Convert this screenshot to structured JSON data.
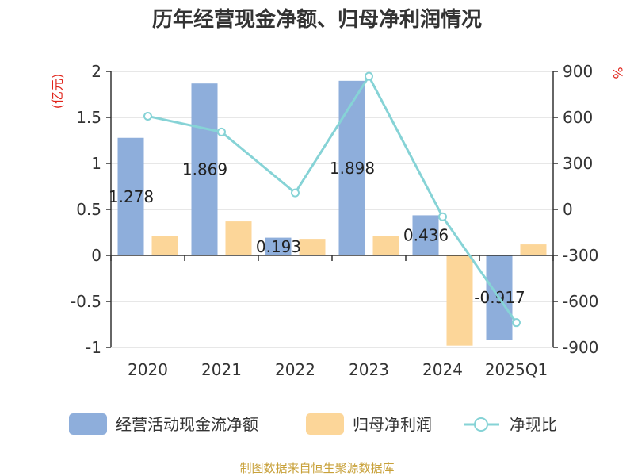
{
  "chart_data": {
    "type": "bar",
    "title": "历年经营现金净额、归母净利润情况",
    "categories": [
      "2020",
      "2021",
      "2022",
      "2023",
      "2024",
      "2025Q1"
    ],
    "y_left": {
      "unit_label": "(亿元)",
      "ylim": [
        -1,
        2
      ],
      "ticks": [
        "2",
        "1.5",
        "1",
        "0.5",
        "0",
        "-0.5",
        "-1"
      ]
    },
    "y_right": {
      "unit_label": "%",
      "ylim": [
        -900,
        900
      ],
      "ticks": [
        "900",
        "600",
        "300",
        "0",
        "-300",
        "-600",
        "-900"
      ]
    },
    "series": [
      {
        "name": "经营活动现金流净额",
        "type": "bar",
        "axis": "left",
        "color": "#8eaedb",
        "values": [
          1.278,
          1.869,
          0.193,
          1.898,
          0.436,
          -0.917
        ],
        "labels": [
          "1.278",
          "1.869",
          "0.193",
          "1.898",
          "0.436",
          "-0.917"
        ]
      },
      {
        "name": "归母净利润",
        "type": "bar",
        "axis": "left",
        "color": "#fcd699",
        "values": [
          0.21,
          0.37,
          0.18,
          0.21,
          -0.98,
          0.12
        ]
      },
      {
        "name": "净现比",
        "type": "line",
        "axis": "right",
        "color": "#86d3d6",
        "values": [
          608,
          505,
          108,
          868,
          -48,
          -738
        ]
      }
    ],
    "grid": true,
    "legend_position": "bottom"
  },
  "footer": {
    "source": "制图数据来自恒生聚源数据库"
  }
}
